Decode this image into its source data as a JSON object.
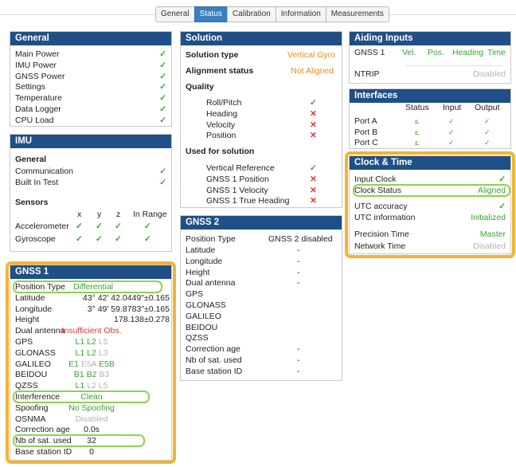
{
  "tabs": [
    "General",
    "Status",
    "Calibration",
    "Information",
    "Measurements"
  ],
  "active_tab": "Status",
  "general": {
    "title": "General",
    "rows": [
      "Main Power",
      "IMU Power",
      "GNSS Power",
      "Settings",
      "Temperature",
      "Data Logger",
      "CPU Load"
    ]
  },
  "imu": {
    "title": "IMU",
    "general_heading": "General",
    "rows": [
      "Communication",
      "Built In Test"
    ],
    "sensors_heading": "Sensors",
    "cols": [
      "x",
      "y",
      "z",
      "In Range"
    ],
    "sensors": [
      "Accelerometer",
      "Gyroscope"
    ]
  },
  "gnss1": {
    "title": "GNSS 1",
    "rows": [
      {
        "label": "Position Type",
        "value": "Differential"
      },
      {
        "label": "Latitude",
        "value": "43° 42' 42.0449\"",
        "extra": "±0.165"
      },
      {
        "label": "Longitude",
        "value": "3° 49' 59.8783\"",
        "extra": "±0.165"
      },
      {
        "label": "Height",
        "value": "178.138",
        "extra": "±0.278"
      },
      {
        "label": "Dual antenna",
        "value": "Insufficient Obs."
      },
      {
        "label": "GPS",
        "a": "L1",
        "b": "L2",
        "c": "L5"
      },
      {
        "label": "GLONASS",
        "a": "L1",
        "b": "L2",
        "c": "L3"
      },
      {
        "label": "GALILEO",
        "a": "E1",
        "b": "E5A",
        "c": "E5B"
      },
      {
        "label": "BEIDOU",
        "a": "B1",
        "b": "B2",
        "c": "B3"
      },
      {
        "label": "QZSS",
        "a": "L1",
        "b": "L2",
        "c": "L5"
      },
      {
        "label": "Interference",
        "value": "Clean"
      },
      {
        "label": "Spoofing",
        "value": "No Spoofing"
      },
      {
        "label": "OSNMA",
        "value": "Disabled"
      },
      {
        "label": "Correction age",
        "value": "0.0s"
      },
      {
        "label": "Nb of sat. used",
        "value": "32"
      },
      {
        "label": "Base station ID",
        "value": "0"
      }
    ]
  },
  "solution": {
    "title": "Solution",
    "solution_type_label": "Solution type",
    "solution_type": "Vertical Gyro",
    "alignment_label": "Alignment status",
    "alignment": "Not Aligned",
    "quality_heading": "Quality",
    "quality": [
      "Roll/Pitch",
      "Heading",
      "Velocity",
      "Position"
    ],
    "used_heading": "Used for solution",
    "used": [
      "Vertical Reference",
      "GNSS 1 Position",
      "GNSS 1 Velocity",
      "GNSS 1 True Heading"
    ]
  },
  "gnss2": {
    "title": "GNSS 2",
    "position_type_label": "Position Type",
    "position_type": "GNSS 2 disabled",
    "rows": [
      "Latitude",
      "Longitude",
      "Height",
      "Dual antenna",
      "GPS",
      "GLONASS",
      "GALILEO",
      "BEIDOU",
      "QZSS",
      "Correction age",
      "Nb of sat. used",
      "Base station ID"
    ],
    "dash": "-"
  },
  "aiding": {
    "title": "Aiding Inputs",
    "gnss_label": "GNSS 1",
    "items": [
      "Vel.",
      "Pos.",
      "Heading",
      "Time"
    ],
    "ntrip_label": "NTRIP",
    "ntrip": "Disabled"
  },
  "interfaces": {
    "title": "Interfaces",
    "cols": [
      "Status",
      "Input",
      "Output"
    ],
    "ports": [
      "Port A",
      "Port B",
      "Port C"
    ]
  },
  "clock": {
    "title": "Clock & Time",
    "input_clock": "Input Clock",
    "clock_status_label": "Clock Status",
    "clock_status": "Aligned",
    "utc_accuracy": "UTC accuracy",
    "utc_info_label": "UTC information",
    "utc_info": "Initialized",
    "precision_label": "Precision Time",
    "precision": "Master",
    "network_label": "Network Time",
    "network": "Disabled"
  },
  "symbols": {
    "check": "✓",
    "cross": "✕",
    "link": "ఽ"
  },
  "colors": {
    "header": "#1f4f86",
    "accent": "#3c7fc0",
    "ok": "#3aa235",
    "warn": "#f08a17",
    "error": "#e53935",
    "highlight": "#f2b431"
  }
}
